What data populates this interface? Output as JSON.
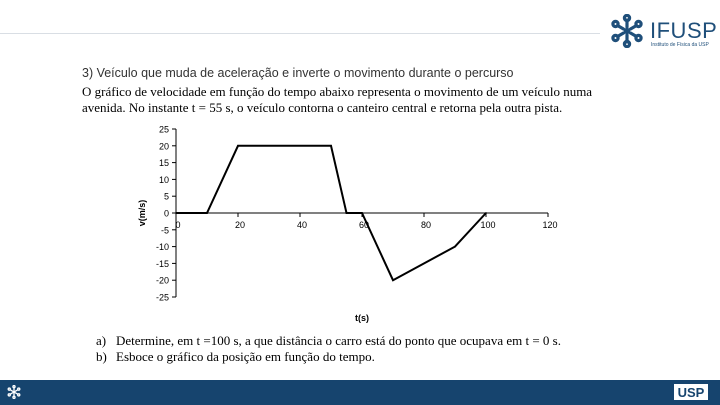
{
  "header": {
    "logo_title": "IFUSP",
    "logo_subtitle": "Instituto de Física da USP"
  },
  "problem": {
    "heading": "3) Veículo que muda de aceleração e inverte o movimento durante o percurso",
    "statement_lines": [
      "O gráfico de velocidade em função do tempo abaixo representa o movimento de um veículo numa",
      "avenida.  No instante t = 55 s, o veículo contorna o canteiro central e retorna pela outra pista."
    ]
  },
  "chart_data": {
    "type": "line",
    "xlabel": "t(s)",
    "ylabel": "v(m/s)",
    "xlim": [
      0,
      120
    ],
    "ylim": [
      -25,
      25
    ],
    "x_ticks": [
      0,
      20,
      40,
      60,
      80,
      100,
      120
    ],
    "y_ticks": [
      25,
      20,
      15,
      10,
      5,
      0,
      -5,
      -10,
      -15,
      -20,
      -25
    ],
    "grid": false,
    "series": [
      {
        "x": [
          0,
          10,
          20,
          50,
          55,
          60,
          70,
          90,
          100
        ],
        "y": [
          0,
          0,
          20,
          20,
          0,
          0,
          -20,
          -10,
          0
        ]
      }
    ]
  },
  "questions": [
    {
      "label": "a)",
      "text": "Determine, em t =100 s, a que distância o carro está do ponto que ocupava em t = 0 s."
    },
    {
      "label": "b)",
      "text": "Esboce o gráfico da posição em função do tempo."
    }
  ],
  "footer": {
    "usp_logo": "USP"
  },
  "colors": {
    "brand": "#1f4f7a",
    "footer_bar": "#16446e"
  }
}
